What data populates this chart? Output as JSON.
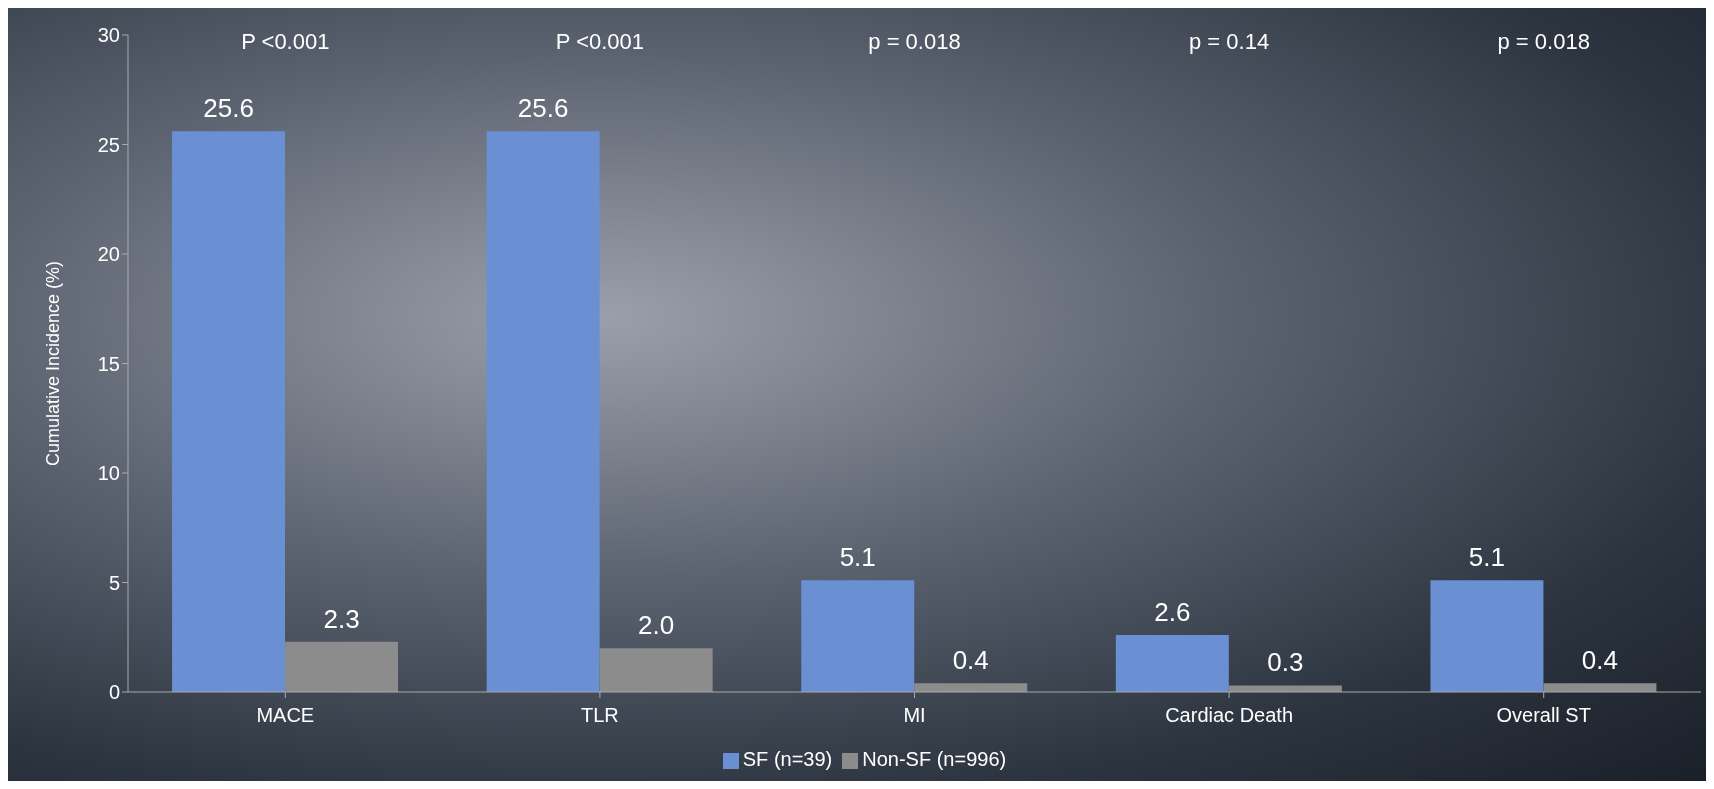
{
  "chart_data": {
    "type": "bar",
    "ylabel": "Cumulative Incidence (%)",
    "categories": [
      "MACE",
      "TLR",
      "MI",
      "Cardiac Death",
      "Overall ST"
    ],
    "series": [
      {
        "name": "SF (n=39)",
        "color": "#6a8fd3",
        "values": [
          25.6,
          25.6,
          5.1,
          2.6,
          5.1
        ],
        "value_labels": [
          "25.6",
          "25.6",
          "5.1",
          "2.6",
          "5.1"
        ]
      },
      {
        "name": "Non-SF (n=996)",
        "color": "#8c8c8c",
        "values": [
          2.3,
          2.0,
          0.4,
          0.3,
          0.4
        ],
        "value_labels": [
          "2.3",
          "2.0",
          "0.4",
          "0.3",
          "0.4"
        ]
      }
    ],
    "ylim": [
      0,
      30
    ],
    "yticks": [
      0,
      5,
      10,
      15,
      20,
      25,
      30
    ],
    "grid": false,
    "legend": "bottom",
    "annotations": [
      "P <0.001",
      "P  <0.001",
      "p = 0.018",
      "p = 0.14",
      "p = 0.018"
    ]
  }
}
